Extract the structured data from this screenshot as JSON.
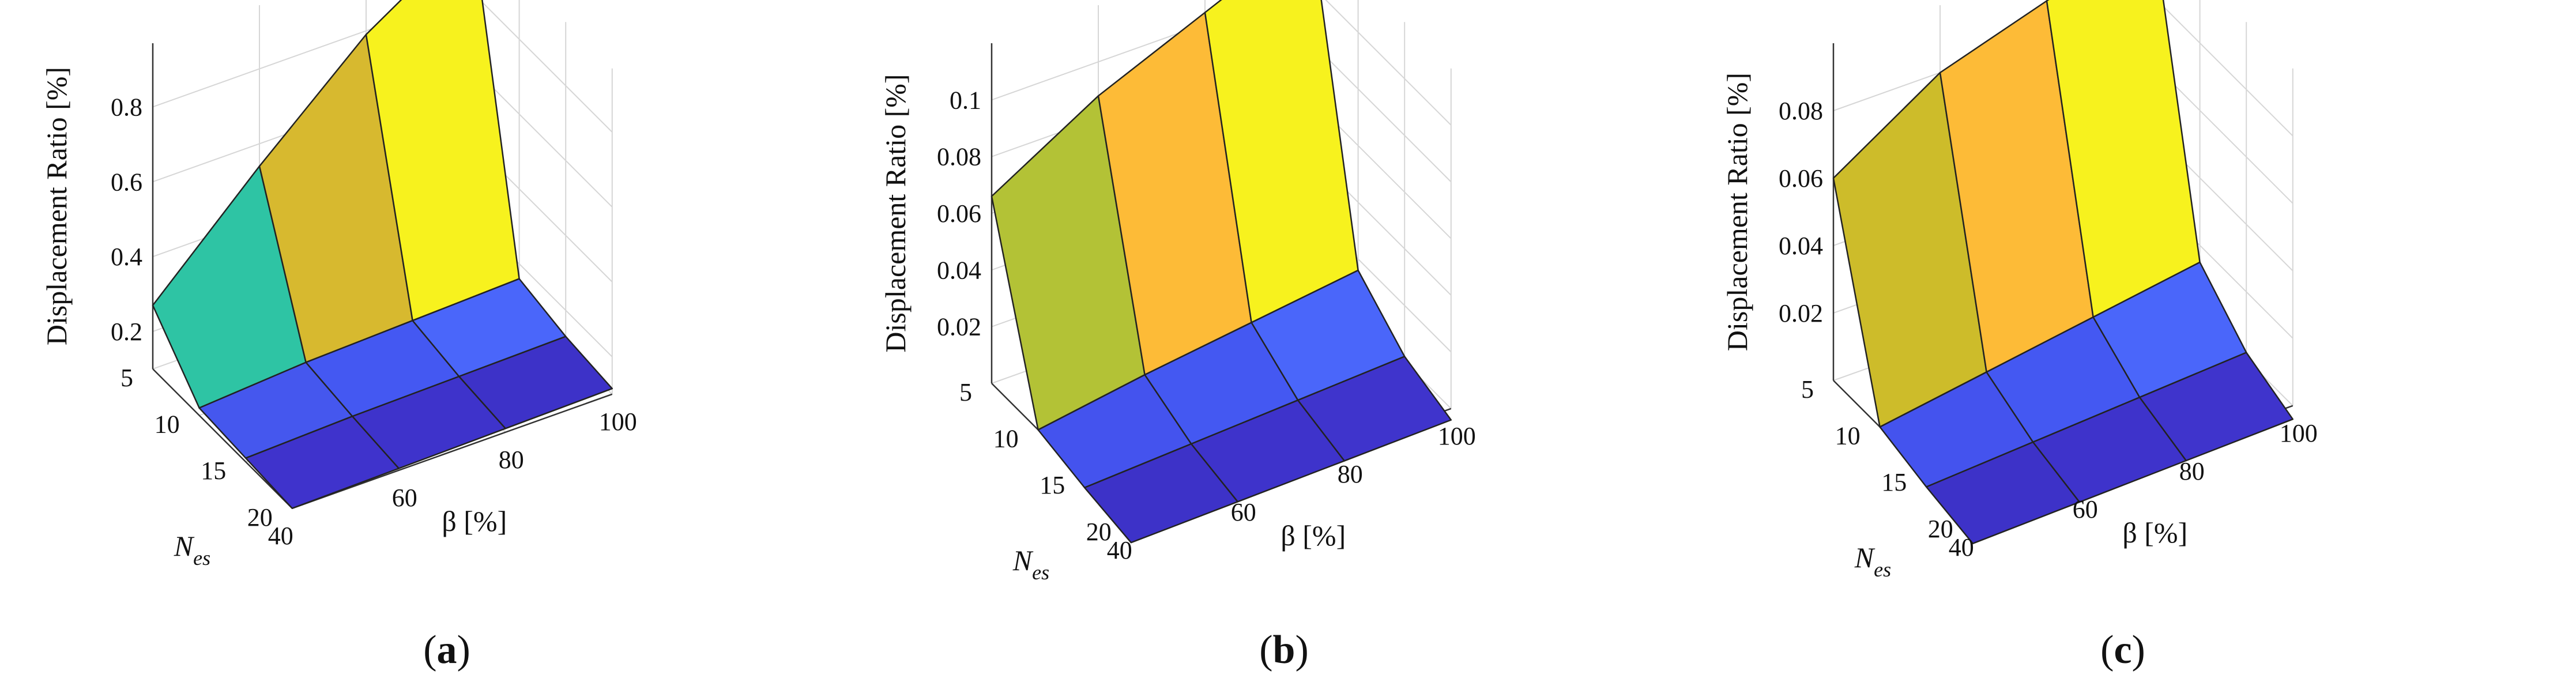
{
  "chart_data": [
    {
      "type": "surface3d",
      "caption": "(a)",
      "caption_letter": "a",
      "zlabel": "Displacement Ratio [%]",
      "xlabel_main": "N",
      "xlabel_sub": "es",
      "ylabel": "β [%]",
      "x": [
        5,
        10,
        15,
        20
      ],
      "x_ticks": [
        "5",
        "10",
        "15",
        "20"
      ],
      "y": [
        40,
        60,
        80,
        100
      ],
      "y_ticks": [
        "40",
        "60",
        "80",
        "100"
      ],
      "z_ticks": [
        "0.2",
        "0.4",
        "0.6",
        "0.8"
      ],
      "zlim": [
        0.1,
        0.97
      ],
      "z": [
        [
          0.27,
          0.54,
          0.79,
          0.97
        ],
        [
          0.12,
          0.14,
          0.15,
          0.16
        ],
        [
          0.11,
          0.12,
          0.125,
          0.13
        ],
        [
          0.1,
          0.105,
          0.11,
          0.115
        ]
      ],
      "face_colors": [
        [
          "#2ec4a4",
          "#d7b92f",
          "#f7f21e"
        ],
        [
          "#4557ee",
          "#4458f2",
          "#4a66fa"
        ],
        [
          "#3f33cc",
          "#3e33cb",
          "#3d32c8"
        ]
      ]
    },
    {
      "type": "surface3d",
      "caption": "(b)",
      "caption_letter": "b",
      "zlabel": "Displacement Ratio [%]",
      "xlabel_main": "N",
      "xlabel_sub": "es",
      "ylabel": "β [%]",
      "x": [
        5,
        10,
        15,
        20
      ],
      "x_ticks": [
        "5",
        "10",
        "15",
        "20"
      ],
      "y": [
        40,
        60,
        80,
        100
      ],
      "y_ticks": [
        "40",
        "60",
        "80",
        "100"
      ],
      "z_ticks": [
        "0.02",
        "0.04",
        "0.06",
        "0.08",
        "0.1"
      ],
      "zlim": [
        0.0,
        0.12
      ],
      "z": [
        [
          0.066,
          0.088,
          0.104,
          0.12
        ],
        [
          0.0,
          0.006,
          0.011,
          0.016
        ],
        [
          -0.004,
          -0.002,
          0.0,
          0.002
        ],
        [
          -0.007,
          -0.006,
          -0.005,
          -0.004
        ]
      ],
      "face_colors": [
        [
          "#b3c236",
          "#fdbb37",
          "#f7f21e"
        ],
        [
          "#4453ee",
          "#4458f2",
          "#4a66fa"
        ],
        [
          "#3d32c8",
          "#3e33cb",
          "#3f34cc"
        ]
      ]
    },
    {
      "type": "surface3d",
      "caption": "(c)",
      "caption_letter": "c",
      "zlabel": "Displacement Ratio [%]",
      "xlabel_main": "N",
      "xlabel_sub": "es",
      "ylabel": "β [%]",
      "x": [
        5,
        10,
        15,
        20
      ],
      "x_ticks": [
        "5",
        "10",
        "15",
        "20"
      ],
      "y": [
        40,
        60,
        80,
        100
      ],
      "y_ticks": [
        "40",
        "60",
        "80",
        "100"
      ],
      "z_ticks": [
        "0.02",
        "0.04",
        "0.06",
        "0.08"
      ],
      "zlim": [
        0.0,
        0.1
      ],
      "z": [
        [
          0.06,
          0.08,
          0.09,
          0.1
        ],
        [
          0.0,
          0.005,
          0.01,
          0.015
        ],
        [
          -0.004,
          -0.002,
          0.0,
          0.002
        ],
        [
          -0.007,
          -0.006,
          -0.005,
          -0.004
        ]
      ],
      "face_colors": [
        [
          "#cdbc2a",
          "#fdbb37",
          "#f7f21e"
        ],
        [
          "#4453ee",
          "#4458f2",
          "#4a66fa"
        ],
        [
          "#3d32c8",
          "#3e33cb",
          "#3f34cc"
        ]
      ]
    }
  ]
}
